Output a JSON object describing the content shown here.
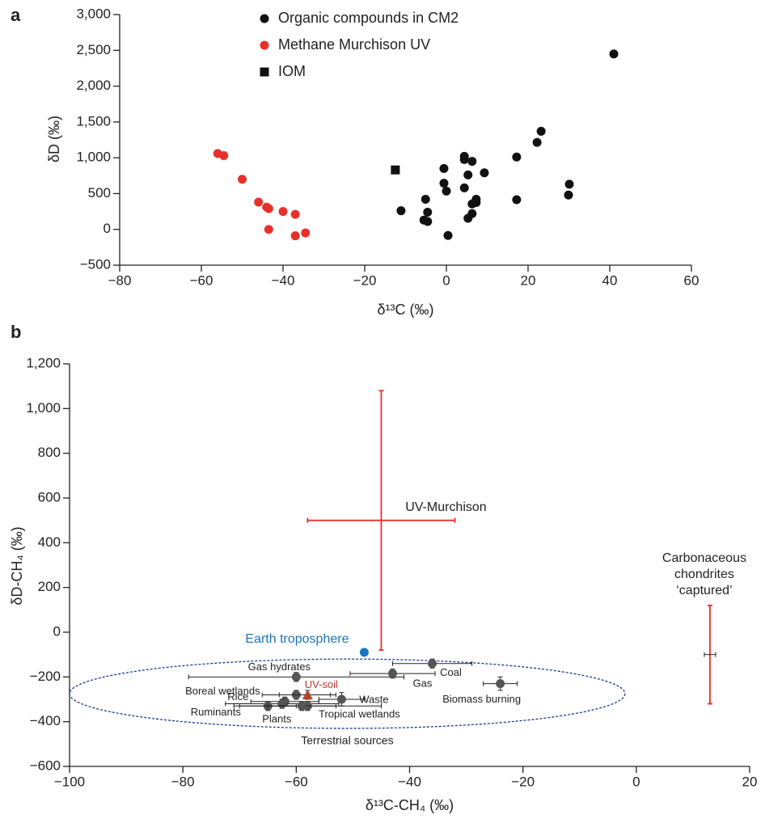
{
  "chart_data": [
    {
      "type": "scatter",
      "panel_label": "a",
      "xlabel": "δ¹³C (‰)",
      "ylabel": "δD (‰)",
      "xlim": [
        -80,
        60
      ],
      "xticks": [
        {
          "value": -80,
          "label": "−80"
        },
        {
          "value": -60,
          "label": "−60"
        },
        {
          "value": -40,
          "label": "−40"
        },
        {
          "value": -20,
          "label": "−20"
        },
        0,
        20,
        40,
        60
      ],
      "ylim": [
        -500,
        3000
      ],
      "yticks": [
        {
          "value": -500,
          "label": "−500"
        },
        0,
        500,
        {
          "value": 1000,
          "label": "1,000"
        },
        {
          "value": 1500,
          "label": "1,500"
        },
        {
          "value": 2000,
          "label": "2,000"
        },
        {
          "value": 2500,
          "label": "2,500"
        },
        {
          "value": 3000,
          "label": "3,000"
        }
      ],
      "legend": "top-center",
      "series": [
        {
          "name": "Organic compounds in CM2",
          "color": "#111111",
          "marker": "circle",
          "x": [
            41,
            23.2,
            22.2,
            17.2,
            17.2,
            30.1,
            29.9,
            4.4,
            4.4,
            6.3,
            9.3,
            5.3,
            -0.6,
            -0.6,
            0,
            4.4,
            7.3,
            7.3,
            6.3,
            6.3,
            5.3,
            -5.1,
            -4.6,
            -11.1,
            -5.5,
            -4.6,
            0.4
          ],
          "values": [
            2450,
            1370,
            1215,
            1010,
            415,
            630,
            480,
            1020,
            975,
            950,
            790,
            760,
            850,
            645,
            535,
            580,
            420,
            375,
            355,
            220,
            155,
            420,
            240,
            260,
            130,
            110,
            -85
          ]
        },
        {
          "name": "Methane Murchison UV",
          "color": "#e8302a",
          "marker": "circle",
          "x": [
            -56,
            -54.5,
            -50,
            -46,
            -44,
            -43.5,
            -40,
            -43.5,
            -37,
            -34.5,
            -37
          ],
          "values": [
            1060,
            1030,
            700,
            380,
            310,
            290,
            250,
            0,
            210,
            -50,
            -90
          ]
        },
        {
          "name": "IOM",
          "color": "#111111",
          "marker": "square",
          "x": [
            -12.5
          ],
          "values": [
            830
          ]
        }
      ]
    },
    {
      "type": "errorbar",
      "panel_label": "b",
      "xlabel": "δ¹³C-CH₄ (‰)",
      "ylabel": "δD-CH₄ (‰)",
      "xlim": [
        -100,
        20
      ],
      "xticks": [
        {
          "value": -100,
          "label": "−100"
        },
        {
          "value": -80,
          "label": "−80"
        },
        {
          "value": -60,
          "label": "−60"
        },
        {
          "value": -40,
          "label": "−40"
        },
        {
          "value": -20,
          "label": "−20"
        },
        0,
        20
      ],
      "ylim": [
        -600,
        1200
      ],
      "yticks": [
        {
          "value": -600,
          "label": "−600"
        },
        {
          "value": -400,
          "label": "−400"
        },
        {
          "value": -200,
          "label": "−200"
        },
        0,
        200,
        400,
        600,
        800,
        {
          "value": 1000,
          "label": "1,000"
        },
        {
          "value": 1200,
          "label": "1,200"
        }
      ],
      "ellipse": {
        "label": "Terrestrial sources",
        "cx": -51,
        "cy": -275,
        "rx": 49,
        "ry": 155,
        "color": "#1f3a93"
      },
      "points": [
        {
          "label": "UV-Murchison",
          "x": -45,
          "y": 500,
          "xerr": 13,
          "yerr": 580,
          "marker": "none",
          "color": "#e8302a",
          "error_color": "#e8302a",
          "label_color": "#222222"
        },
        {
          "label": "Earth troposphere",
          "x": -48,
          "y": -90,
          "xerr": 0,
          "yerr": 0,
          "marker": "circle",
          "color": "#1b75bc",
          "error_color": "#1b75bc",
          "label_color": "#1b75bc"
        },
        {
          "label": [
            "Carbonaceous",
            "chondrites",
            "‘captured’"
          ],
          "x": 13,
          "y": -100,
          "xerr": 1,
          "yerr": 220,
          "marker": "none",
          "color": "#e8302a",
          "error_color": "#e8302a",
          "label_color": "#222222"
        },
        {
          "label": "Gas hydrates",
          "x": -60,
          "y": -200,
          "xerr": 19,
          "yerr": 20,
          "marker": "circle",
          "color": "#555555",
          "error_color": "#222222",
          "label_color": "#222222"
        },
        {
          "label": "Gas",
          "x": -43,
          "y": -185,
          "xerr": 7.5,
          "yerr": 20,
          "marker": "circle",
          "color": "#555555",
          "error_color": "#222222",
          "label_color": "#222222"
        },
        {
          "label": "Coal",
          "x": -36,
          "y": -140,
          "xerr": 7,
          "yerr": 20,
          "marker": "circle",
          "color": "#555555",
          "error_color": "#222222",
          "label_color": "#222222"
        },
        {
          "label": "Biomass burning",
          "x": -24,
          "y": -230,
          "xerr": 3,
          "yerr": 30,
          "marker": "circle",
          "color": "#555555",
          "error_color": "#222222",
          "label_color": "#222222"
        },
        {
          "label": "Boreal wetlands",
          "x": -60,
          "y": -280,
          "xerr": 6,
          "yerr": 20,
          "marker": "circle",
          "color": "#555555",
          "error_color": "#222222",
          "label_color": "#222222"
        },
        {
          "label": "Rice",
          "x": -62,
          "y": -310,
          "xerr": 6,
          "yerr": 20,
          "marker": "circle",
          "color": "#555555",
          "error_color": "#222222",
          "label_color": "#222222"
        },
        {
          "label": "Ruminants",
          "x": -62.5,
          "y": -320,
          "xerr": 10,
          "yerr": 20,
          "marker": "circle",
          "color": "#555555",
          "error_color": "#222222",
          "label_color": "#222222"
        },
        {
          "label": "Plants",
          "x": -65,
          "y": -330,
          "xerr": 5,
          "yerr": 20,
          "marker": "circle",
          "color": "#555555",
          "error_color": "#222222",
          "label_color": "#222222"
        },
        {
          "label": "Tropical wetlands",
          "x": -58,
          "y": -330,
          "xerr": 13,
          "yerr": 20,
          "marker": "circle",
          "color": "#555555",
          "error_color": "#222222",
          "label_color": "#222222"
        },
        {
          "label": "Waste",
          "x": -52,
          "y": -300,
          "xerr": 4,
          "yerr": 30,
          "marker": "circle",
          "color": "#555555",
          "error_color": "#222222",
          "label_color": "#222222"
        },
        {
          "label": "UV-soil",
          "x": -58,
          "y": -280,
          "xerr": 5,
          "yerr": 20,
          "marker": "triangle",
          "color": "#b5452a",
          "error_color": "#222222",
          "label_color": "#c0392b"
        },
        {
          "label": null,
          "x": -59,
          "y": -330,
          "xerr": 6,
          "yerr": 20,
          "marker": "circle",
          "color": "#555555",
          "error_color": "#222222",
          "label_color": "#222222"
        }
      ]
    }
  ]
}
